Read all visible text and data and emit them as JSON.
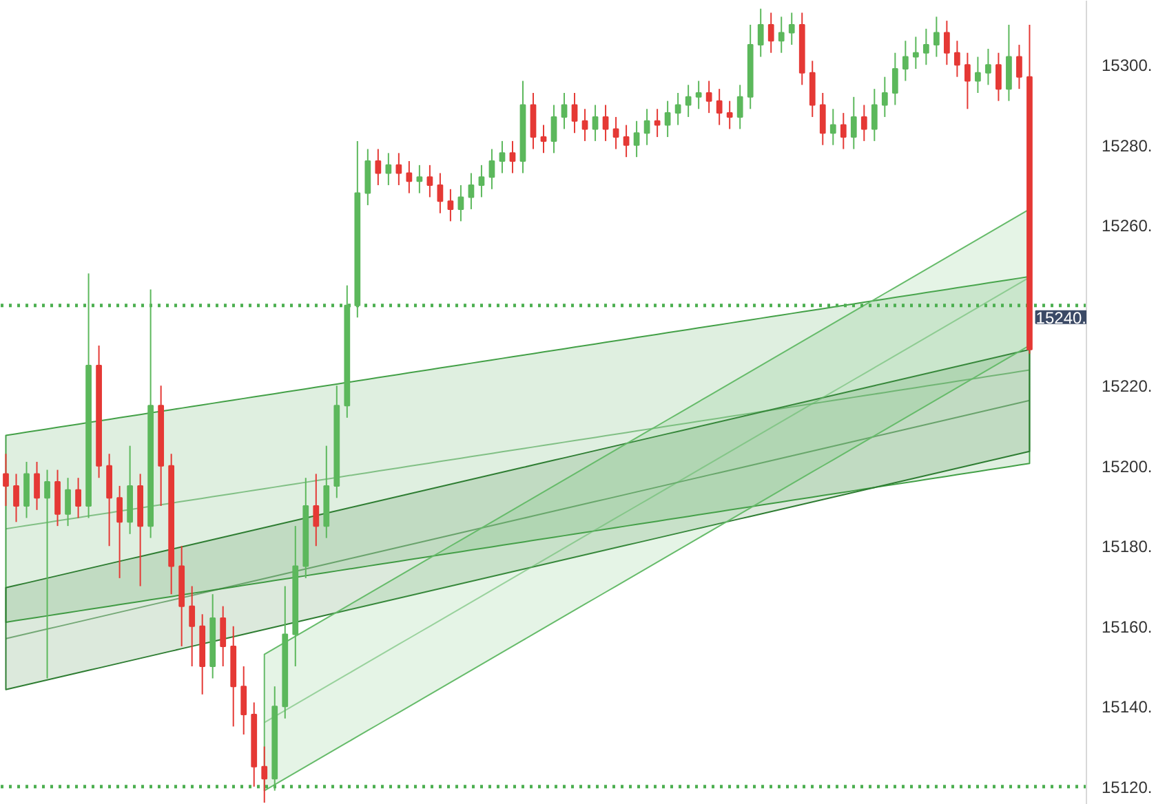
{
  "chart_data": {
    "type": "candlestick",
    "categories": [
      null,
      null,
      null,
      null,
      null,
      null,
      null,
      null,
      null,
      null,
      null,
      null,
      null,
      null,
      null,
      null,
      null,
      null,
      null,
      null,
      null,
      null,
      null,
      null,
      null,
      null,
      null,
      null,
      null,
      null,
      null,
      null,
      null,
      null,
      null,
      null,
      null,
      null,
      null,
      null,
      null,
      null,
      null,
      null,
      null,
      null,
      null,
      null,
      null,
      null,
      null,
      null,
      null,
      null,
      null,
      null,
      null,
      null,
      null,
      null,
      null,
      null,
      null,
      null,
      null,
      null,
      null,
      null,
      null,
      null,
      null,
      null,
      null,
      null,
      null,
      null,
      null,
      null,
      null,
      null,
      null,
      null,
      null,
      null,
      null,
      null,
      null,
      null,
      null,
      null,
      null,
      null,
      null,
      null,
      null,
      null,
      null,
      null,
      null,
      null
    ],
    "ohlc": [
      [
        15198,
        15203,
        15190,
        15195
      ],
      [
        15195,
        15198,
        15186,
        15190
      ],
      [
        15190,
        15201,
        15187,
        15198
      ],
      [
        15198,
        15201,
        15189,
        15192
      ],
      [
        15192,
        15199,
        15147,
        15196
      ],
      [
        15196,
        15199,
        15185,
        15188
      ],
      [
        15188,
        15197,
        15185,
        15194
      ],
      [
        15194,
        15197,
        15187,
        15190
      ],
      [
        15190,
        15248,
        15187,
        15225
      ],
      [
        15225,
        15230,
        15197,
        15200
      ],
      [
        15200,
        15203,
        15180,
        15192
      ],
      [
        15192,
        15195,
        15172,
        15186
      ],
      [
        15186,
        15205,
        15183,
        15195
      ],
      [
        15195,
        15198,
        15170,
        15185
      ],
      [
        15185,
        15244,
        15182,
        15215
      ],
      [
        15215,
        15220,
        15190,
        15200
      ],
      [
        15200,
        15203,
        15168,
        15175
      ],
      [
        15175,
        15180,
        15155,
        15165
      ],
      [
        15165,
        15170,
        15150,
        15160
      ],
      [
        15160,
        15163,
        15143,
        15150
      ],
      [
        15150,
        15168,
        15147,
        15162
      ],
      [
        15162,
        15165,
        15150,
        15155
      ],
      [
        15155,
        15160,
        15135,
        15145
      ],
      [
        15145,
        15150,
        15133,
        15138
      ],
      [
        15138,
        15141,
        15120,
        15125
      ],
      [
        15125,
        15130,
        15116,
        15122
      ],
      [
        15122,
        15145,
        15119,
        15140
      ],
      [
        15140,
        15170,
        15137,
        15158
      ],
      [
        15158,
        15185,
        15150,
        15175
      ],
      [
        15175,
        15197,
        15172,
        15190
      ],
      [
        15190,
        15198,
        15180,
        15185
      ],
      [
        15185,
        15205,
        15182,
        15195
      ],
      [
        15195,
        15220,
        15192,
        15215
      ],
      [
        15215,
        15245,
        15212,
        15240
      ],
      [
        15240,
        15281,
        15237,
        15268
      ],
      [
        15268,
        15279,
        15265,
        15276
      ],
      [
        15276,
        15279,
        15270,
        15273
      ],
      [
        15273,
        15278,
        15270,
        15275
      ],
      [
        15275,
        15278,
        15270,
        15273
      ],
      [
        15273,
        15276,
        15268,
        15271
      ],
      [
        15271,
        15275,
        15268,
        15272
      ],
      [
        15272,
        15275,
        15267,
        15270
      ],
      [
        15270,
        15273,
        15263,
        15266
      ],
      [
        15266,
        15269,
        15261,
        15264
      ],
      [
        15264,
        15270,
        15261,
        15267
      ],
      [
        15267,
        15273,
        15264,
        15270
      ],
      [
        15270,
        15275,
        15267,
        15272
      ],
      [
        15272,
        15279,
        15269,
        15276
      ],
      [
        15276,
        15281,
        15273,
        15278
      ],
      [
        15278,
        15281,
        15273,
        15276
      ],
      [
        15276,
        15296,
        15273,
        15290
      ],
      [
        15290,
        15293,
        15279,
        15282
      ],
      [
        15282,
        15285,
        15278,
        15281
      ],
      [
        15281,
        15290,
        15278,
        15287
      ],
      [
        15287,
        15293,
        15284,
        15290
      ],
      [
        15290,
        15293,
        15283,
        15286
      ],
      [
        15286,
        15289,
        15281,
        15284
      ],
      [
        15284,
        15290,
        15281,
        15287
      ],
      [
        15287,
        15290,
        15281,
        15284
      ],
      [
        15284,
        15287,
        15279,
        15282
      ],
      [
        15282,
        15285,
        15277,
        15280
      ],
      [
        15280,
        15286,
        15277,
        15283
      ],
      [
        15283,
        15289,
        15280,
        15286
      ],
      [
        15286,
        15289,
        15282,
        15285
      ],
      [
        15285,
        15291,
        15282,
        15288
      ],
      [
        15288,
        15293,
        15285,
        15290
      ],
      [
        15290,
        15295,
        15287,
        15292
      ],
      [
        15292,
        15296,
        15289,
        15293
      ],
      [
        15293,
        15296,
        15288,
        15291
      ],
      [
        15291,
        15294,
        15285,
        15288
      ],
      [
        15288,
        15291,
        15284,
        15287
      ],
      [
        15287,
        15295,
        15284,
        15292
      ],
      [
        15292,
        15310,
        15289,
        15305
      ],
      [
        15305,
        15314,
        15302,
        15310
      ],
      [
        15310,
        15313,
        15303,
        15306
      ],
      [
        15306,
        15312,
        15303,
        15308
      ],
      [
        15308,
        15313,
        15305,
        15310
      ],
      [
        15310,
        15313,
        15295,
        15298
      ],
      [
        15298,
        15301,
        15287,
        15290
      ],
      [
        15290,
        15293,
        15280,
        15283
      ],
      [
        15283,
        15289,
        15280,
        15285
      ],
      [
        15285,
        15288,
        15279,
        15282
      ],
      [
        15282,
        15292,
        15279,
        15287
      ],
      [
        15287,
        15290,
        15281,
        15284
      ],
      [
        15284,
        15294,
        15281,
        15290
      ],
      [
        15290,
        15297,
        15287,
        15293
      ],
      [
        15293,
        15303,
        15290,
        15299
      ],
      [
        15299,
        15306,
        15296,
        15302
      ],
      [
        15302,
        15307,
        15299,
        15303
      ],
      [
        15303,
        15309,
        15300,
        15305
      ],
      [
        15305,
        15312,
        15302,
        15308
      ],
      [
        15308,
        15311,
        15300,
        15303
      ],
      [
        15303,
        15306,
        15297,
        15300
      ],
      [
        15300,
        15303,
        15289,
        15296
      ],
      [
        15296,
        15302,
        15293,
        15298
      ],
      [
        15298,
        15304,
        15295,
        15300
      ],
      [
        15300,
        15303,
        15291,
        15294
      ],
      [
        15294,
        15310,
        15291,
        15302
      ],
      [
        15302,
        15305,
        15294,
        15297
      ],
      [
        15297,
        15310,
        15228,
        15229
      ]
    ],
    "series": [
      {
        "type": "line",
        "color": "#43a047",
        "values": [
          15184.3,
          15184.7,
          15185.1,
          15185.5,
          15185.9,
          15186.3,
          15186.7,
          15187.1,
          15187.5,
          15187.9,
          15188.3,
          15188.7,
          15189.1,
          15189.5,
          15189.9,
          15190.3,
          15190.7,
          15191.1,
          15191.5,
          15191.9,
          15192.3,
          15192.7,
          15193.1,
          15193.5,
          15193.9,
          15194.3,
          15194.7,
          15195.1,
          15195.5,
          15195.9,
          15196.3,
          15196.7,
          15197.1,
          15197.5,
          15197.9,
          15198.3,
          15198.7,
          15199.1,
          15199.5,
          15199.9,
          15200.3,
          15200.7,
          15201.1,
          15201.5,
          15201.9,
          15202.3,
          15202.7,
          15203.1,
          15203.5,
          15203.9,
          15204.3,
          15204.7,
          15205.1,
          15205.5,
          15205.9,
          15206.3,
          15206.7,
          15207.1,
          15207.5,
          15207.9,
          15208.3,
          15208.7,
          15209.1,
          15209.5,
          15209.9,
          15210.3,
          15210.7,
          15211.1,
          15211.5,
          15211.9,
          15212.3,
          15212.7,
          15213.1,
          15213.5,
          15213.9,
          15214.3,
          15214.7,
          15215.1,
          15215.5,
          15215.9,
          15216.3,
          15216.7,
          15217.1,
          15217.5,
          15217.9,
          15218.3,
          15218.7,
          15219.1,
          15219.5,
          15219.9,
          15220.3,
          15220.7,
          15221.1,
          15221.5,
          15221.9,
          15222.3,
          15222.7,
          15223.1,
          15223.5,
          15223.9
        ],
        "lower": [
          15161.0,
          15161.4,
          15161.8,
          15162.2,
          15162.6,
          15163.0,
          15163.4,
          15163.8,
          15164.2,
          15164.6,
          15165.0,
          15165.4,
          15165.8,
          15166.2,
          15166.6,
          15167.0,
          15167.4,
          15167.8,
          15168.2,
          15168.6,
          15169.0,
          15169.4,
          15169.8,
          15170.2,
          15170.6,
          15171.0,
          15171.4,
          15171.8,
          15172.2,
          15172.6,
          15173.0,
          15173.4,
          15173.8,
          15174.2,
          15174.6,
          15175.0,
          15175.4,
          15175.8,
          15176.2,
          15176.6,
          15177.0,
          15177.4,
          15177.8,
          15178.2,
          15178.6,
          15179.0,
          15179.4,
          15179.8,
          15180.2,
          15180.6,
          15181.0,
          15181.4,
          15181.8,
          15182.2,
          15182.6,
          15183.0,
          15183.4,
          15183.8,
          15184.2,
          15184.6,
          15185.0,
          15185.4,
          15185.8,
          15186.2,
          15186.6,
          15187.0,
          15187.4,
          15187.8,
          15188.2,
          15188.6,
          15189.0,
          15189.4,
          15189.8,
          15190.2,
          15190.6,
          15191.0,
          15191.4,
          15191.8,
          15192.2,
          15192.6,
          15193.0,
          15193.4,
          15193.8,
          15194.2,
          15194.6,
          15195.0,
          15195.4,
          15195.8,
          15196.2,
          15196.6,
          15197.0,
          15197.4,
          15197.8,
          15198.2,
          15198.6,
          15199.0,
          15199.4,
          15199.8,
          15200.2,
          15200.6
        ],
        "upper": [
          15207.6,
          15208.0,
          15208.4,
          15208.8,
          15209.2,
          15209.6,
          15210.0,
          15210.4,
          15210.8,
          15211.2,
          15211.6,
          15212.0,
          15212.4,
          15212.8,
          15213.2,
          15213.6,
          15214.0,
          15214.4,
          15214.8,
          15215.2,
          15215.6,
          15216.0,
          15216.4,
          15216.8,
          15217.2,
          15217.6,
          15218.0,
          15218.4,
          15218.8,
          15219.2,
          15219.6,
          15220.0,
          15220.4,
          15220.8,
          15221.2,
          15221.6,
          15222.0,
          15222.4,
          15222.8,
          15223.2,
          15223.6,
          15224.0,
          15224.4,
          15224.8,
          15225.2,
          15225.6,
          15226.0,
          15226.4,
          15226.8,
          15227.2,
          15227.6,
          15228.0,
          15228.4,
          15228.8,
          15229.2,
          15229.6,
          15230.0,
          15230.4,
          15230.8,
          15231.2,
          15231.6,
          15232.0,
          15232.4,
          15232.8,
          15233.2,
          15233.6,
          15234.0,
          15234.4,
          15234.8,
          15235.2,
          15235.6,
          15236.0,
          15236.4,
          15236.8,
          15237.2,
          15237.6,
          15238.0,
          15238.4,
          15238.8,
          15239.2,
          15239.6,
          15240.0,
          15240.4,
          15240.8,
          15241.2,
          15241.6,
          15242.0,
          15242.4,
          15242.8,
          15243.2,
          15243.6,
          15244.0,
          15244.4,
          15244.8,
          15245.2,
          15245.6,
          15246.0,
          15246.4,
          15246.8,
          15247.2
        ]
      },
      {
        "type": "line",
        "color": "#2e7d32",
        "values": [
          15156.9,
          15157.5,
          15158.1,
          15158.7,
          15159.3,
          15159.9,
          15160.5,
          15161.1,
          15161.7,
          15162.3,
          15162.9,
          15163.5,
          15164.1,
          15164.7,
          15165.3,
          15165.9,
          15166.5,
          15167.1,
          15167.7,
          15168.3,
          15168.9,
          15169.5,
          15170.1,
          15170.7,
          15171.3,
          15171.9,
          15172.5,
          15173.1,
          15173.7,
          15174.3,
          15174.9,
          15175.5,
          15176.1,
          15176.7,
          15177.3,
          15177.9,
          15178.5,
          15179.1,
          15179.7,
          15180.3,
          15180.9,
          15181.5,
          15182.1,
          15182.7,
          15183.3,
          15183.9,
          15184.5,
          15185.1,
          15185.7,
          15186.3,
          15186.9,
          15187.5,
          15188.1,
          15188.7,
          15189.3,
          15189.9,
          15190.5,
          15191.1,
          15191.7,
          15192.3,
          15192.9,
          15193.5,
          15194.1,
          15194.7,
          15195.3,
          15195.9,
          15196.5,
          15197.1,
          15197.7,
          15198.3,
          15198.9,
          15199.5,
          15200.1,
          15200.7,
          15201.3,
          15201.9,
          15202.5,
          15203.1,
          15203.7,
          15204.3,
          15204.9,
          15205.5,
          15206.1,
          15206.7,
          15207.3,
          15207.9,
          15208.5,
          15209.1,
          15209.7,
          15210.3,
          15210.9,
          15211.5,
          15212.1,
          15212.7,
          15213.3,
          15213.9,
          15214.5,
          15215.1,
          15215.7,
          15216.3
        ],
        "lower": [
          15144.2,
          15144.8,
          15145.4,
          15146.0,
          15146.6,
          15147.2,
          15147.8,
          15148.4,
          15149.0,
          15149.6,
          15150.2,
          15150.8,
          15151.4,
          15152.0,
          15152.6,
          15153.2,
          15153.8,
          15154.4,
          15155.0,
          15155.6,
          15156.2,
          15156.8,
          15157.4,
          15158.0,
          15158.6,
          15159.2,
          15159.8,
          15160.4,
          15161.0,
          15161.6,
          15162.2,
          15162.8,
          15163.4,
          15164.0,
          15164.6,
          15165.2,
          15165.8,
          15166.4,
          15167.0,
          15167.6,
          15168.2,
          15168.8,
          15169.4,
          15170.0,
          15170.6,
          15171.2,
          15171.8,
          15172.4,
          15173.0,
          15173.6,
          15174.2,
          15174.8,
          15175.4,
          15176.0,
          15176.6,
          15177.2,
          15177.8,
          15178.4,
          15179.0,
          15179.6,
          15180.2,
          15180.8,
          15181.4,
          15182.0,
          15182.6,
          15183.2,
          15183.8,
          15184.4,
          15185.0,
          15185.6,
          15186.2,
          15186.8,
          15187.4,
          15188.0,
          15188.6,
          15189.2,
          15189.8,
          15190.4,
          15191.0,
          15191.6,
          15192.2,
          15192.8,
          15193.4,
          15194.0,
          15194.6,
          15195.2,
          15195.8,
          15196.4,
          15197.0,
          15197.6,
          15198.2,
          15198.8,
          15199.4,
          15200.0,
          15200.6,
          15201.2,
          15201.8,
          15202.4,
          15203.0,
          15203.6
        ],
        "upper": [
          15169.6,
          15170.2,
          15170.8,
          15171.4,
          15172.0,
          15172.6,
          15173.2,
          15173.8,
          15174.4,
          15175.0,
          15175.6,
          15176.2,
          15176.8,
          15177.4,
          15178.0,
          15178.6,
          15179.2,
          15179.8,
          15180.4,
          15181.0,
          15181.6,
          15182.2,
          15182.8,
          15183.4,
          15184.0,
          15184.6,
          15185.2,
          15185.8,
          15186.4,
          15187.0,
          15187.6,
          15188.2,
          15188.8,
          15189.4,
          15190.0,
          15190.6,
          15191.2,
          15191.8,
          15192.4,
          15193.0,
          15193.6,
          15194.2,
          15194.8,
          15195.4,
          15196.0,
          15196.6,
          15197.2,
          15197.8,
          15198.4,
          15199.0,
          15199.6,
          15200.2,
          15200.8,
          15201.4,
          15202.0,
          15202.6,
          15203.2,
          15203.8,
          15204.4,
          15205.0,
          15205.6,
          15206.2,
          15206.8,
          15207.4,
          15208.0,
          15208.6,
          15209.2,
          15209.8,
          15210.4,
          15211.0,
          15211.6,
          15212.2,
          15212.8,
          15213.4,
          15214.0,
          15214.6,
          15215.2,
          15215.8,
          15216.4,
          15217.0,
          15217.6,
          15218.2,
          15218.8,
          15219.4,
          15220.0,
          15220.6,
          15221.2,
          15221.8,
          15222.4,
          15223.0,
          15223.6,
          15224.2,
          15224.8,
          15225.4,
          15226.0,
          15226.6,
          15227.2,
          15227.8,
          15228.4,
          15229.0
        ]
      },
      {
        "type": "line",
        "color": "#66bb6a",
        "values": [
          null,
          null,
          null,
          null,
          null,
          null,
          null,
          null,
          null,
          null,
          null,
          null,
          null,
          null,
          null,
          null,
          null,
          null,
          null,
          null,
          null,
          null,
          null,
          null,
          null,
          15136.0,
          15137.5,
          15139.0,
          15140.5,
          15142.0,
          15143.5,
          15145.0,
          15146.5,
          15148.0,
          15149.5,
          15151.0,
          15152.5,
          15154.0,
          15155.5,
          15157.0,
          15158.5,
          15160.0,
          15161.5,
          15163.0,
          15164.5,
          15166.0,
          15167.5,
          15169.0,
          15170.5,
          15172.0,
          15173.5,
          15175.0,
          15176.5,
          15178.0,
          15179.5,
          15181.0,
          15182.5,
          15184.0,
          15185.5,
          15187.0,
          15188.5,
          15190.0,
          15191.5,
          15193.0,
          15194.5,
          15196.0,
          15197.5,
          15199.0,
          15200.5,
          15202.0,
          15203.5,
          15205.0,
          15206.5,
          15208.0,
          15209.5,
          15211.0,
          15212.5,
          15214.0,
          15215.5,
          15217.0,
          15218.5,
          15220.0,
          15221.5,
          15223.0,
          15224.5,
          15226.0,
          15227.5,
          15229.0,
          15230.5,
          15232.0,
          15233.5,
          15235.0,
          15236.5,
          15238.0,
          15239.5,
          15241.0,
          15242.5,
          15244.0,
          15245.5,
          15247.0
        ],
        "lower": [
          null,
          null,
          null,
          null,
          null,
          null,
          null,
          null,
          null,
          null,
          null,
          null,
          null,
          null,
          null,
          null,
          null,
          null,
          null,
          null,
          null,
          null,
          null,
          null,
          null,
          15119.0,
          15120.5,
          15122.0,
          15123.5,
          15125.0,
          15126.5,
          15128.0,
          15129.5,
          15131.0,
          15132.5,
          15134.0,
          15135.5,
          15137.0,
          15138.5,
          15140.0,
          15141.5,
          15143.0,
          15144.5,
          15146.0,
          15147.5,
          15149.0,
          15150.5,
          15152.0,
          15153.5,
          15155.0,
          15156.5,
          15158.0,
          15159.5,
          15161.0,
          15162.5,
          15164.0,
          15165.5,
          15167.0,
          15168.5,
          15170.0,
          15171.5,
          15173.0,
          15174.5,
          15176.0,
          15177.5,
          15179.0,
          15180.5,
          15182.0,
          15183.5,
          15185.0,
          15186.5,
          15188.0,
          15189.5,
          15191.0,
          15192.5,
          15194.0,
          15195.5,
          15197.0,
          15198.5,
          15200.0,
          15201.5,
          15203.0,
          15204.5,
          15206.0,
          15207.5,
          15209.0,
          15210.5,
          15212.0,
          15213.5,
          15215.0,
          15216.5,
          15218.0,
          15219.5,
          15221.0,
          15222.5,
          15224.0,
          15225.5,
          15227.0,
          15228.5,
          15230.0
        ],
        "upper": [
          null,
          null,
          null,
          null,
          null,
          null,
          null,
          null,
          null,
          null,
          null,
          null,
          null,
          null,
          null,
          null,
          null,
          null,
          null,
          null,
          null,
          null,
          null,
          null,
          null,
          15153.0,
          15154.5,
          15156.0,
          15157.5,
          15159.0,
          15160.5,
          15162.0,
          15163.5,
          15165.0,
          15166.5,
          15168.0,
          15169.5,
          15171.0,
          15172.5,
          15174.0,
          15175.5,
          15177.0,
          15178.5,
          15180.0,
          15181.5,
          15183.0,
          15184.5,
          15186.0,
          15187.5,
          15189.0,
          15190.5,
          15192.0,
          15193.5,
          15195.0,
          15196.5,
          15198.0,
          15199.5,
          15201.0,
          15202.5,
          15204.0,
          15205.5,
          15207.0,
          15208.5,
          15210.0,
          15211.5,
          15213.0,
          15214.5,
          15216.0,
          15217.5,
          15219.0,
          15220.5,
          15222.0,
          15223.5,
          15225.0,
          15226.5,
          15228.0,
          15229.5,
          15231.0,
          15232.5,
          15234.0,
          15235.5,
          15237.0,
          15238.5,
          15240.0,
          15241.5,
          15243.0,
          15244.5,
          15246.0,
          15247.5,
          15249.0,
          15250.5,
          15252.0,
          15253.5,
          15255.0,
          15256.5,
          15258.0,
          15259.5,
          15261.0,
          15262.5,
          15264.0
        ]
      }
    ],
    "ylim": [
      15115.5,
      15316
    ],
    "yticks": [
      {
        "value": 15120,
        "label": "15120."
      },
      {
        "value": 15140,
        "label": "15140."
      },
      {
        "value": 15160,
        "label": "15160."
      },
      {
        "value": 15180,
        "label": "15180."
      },
      {
        "value": 15200,
        "label": "15200."
      },
      {
        "value": 15220,
        "label": "15220."
      },
      {
        "value": 15260,
        "label": "15260."
      },
      {
        "value": 15280,
        "label": "15280."
      },
      {
        "value": 15300,
        "label": "15300."
      }
    ],
    "tick_labels": "y",
    "ref_lines": [
      {
        "axis": "y",
        "value": 15240,
        "label": "15240.",
        "color": "#4caf50",
        "line_style": "dotted"
      },
      {
        "axis": "y",
        "value": 15120,
        "label": null,
        "color": "#4caf50",
        "line_style": "dotted"
      }
    ]
  }
}
